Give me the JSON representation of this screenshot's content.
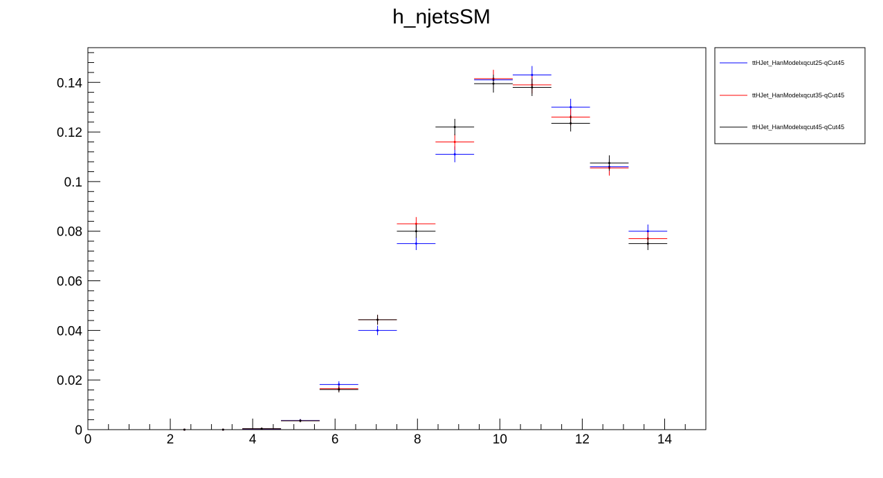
{
  "chart_data": {
    "type": "scatter",
    "title": "h_njetsSM",
    "xlabel": "",
    "ylabel": "",
    "xlim": [
      0,
      15
    ],
    "ylim": [
      0,
      0.154
    ],
    "x_ticks": [
      0,
      2,
      4,
      6,
      8,
      10,
      12,
      14
    ],
    "x_tick_labels": [
      "0",
      "2",
      "4",
      "6",
      "8",
      "10",
      "12",
      "14"
    ],
    "y_ticks": [
      0,
      0.02,
      0.04,
      0.06,
      0.08,
      0.1,
      0.12,
      0.14
    ],
    "y_tick_labels": [
      "0",
      "0.02",
      "0.04",
      "0.06",
      "0.08",
      "0.1",
      "0.12",
      "0.14"
    ],
    "bin_low": [
      1.875,
      2.8125,
      3.75,
      4.6875,
      5.625,
      6.5625,
      7.5,
      8.4375,
      9.375,
      10.3125,
      11.25,
      12.1875,
      13.125
    ],
    "bin_high": [
      2.8125,
      3.75,
      4.6875,
      5.625,
      6.5625,
      7.5,
      8.4375,
      9.375,
      10.3125,
      11.25,
      12.1875,
      13.125,
      14.0625
    ],
    "legend_position": "top-right, outside plot",
    "grid": false,
    "series": [
      {
        "name": "ttHJet_HanModelxqcut25-qCut45",
        "color": "#0000ff",
        "values": [
          0.0,
          0.0,
          0.0003,
          0.0037,
          0.0182,
          0.04,
          0.075,
          0.111,
          0.141,
          0.143,
          0.13,
          0.106,
          0.08
        ],
        "errors": [
          0.0,
          0.0,
          0.0002,
          0.0006,
          0.0013,
          0.0019,
          0.0026,
          0.0032,
          0.0036,
          0.0036,
          0.0034,
          0.0031,
          0.0027
        ]
      },
      {
        "name": "ttHJet_HanModelxqcut35-qCut45",
        "color": "#ff0000",
        "values": [
          0.0,
          0.0,
          0.0004,
          0.0036,
          0.0165,
          0.0443,
          0.083,
          0.116,
          0.1415,
          0.139,
          0.126,
          0.1055,
          0.077
        ],
        "errors": [
          0.0,
          0.0,
          0.0002,
          0.0006,
          0.0012,
          0.002,
          0.0027,
          0.0032,
          0.0036,
          0.0035,
          0.0034,
          0.0031,
          0.0026
        ]
      },
      {
        "name": "ttHJet_HanModelxqcut45-qCut45",
        "color": "#000000",
        "values": [
          0.0,
          0.0,
          0.0004,
          0.0036,
          0.0162,
          0.0443,
          0.08,
          0.122,
          0.1395,
          0.138,
          0.1235,
          0.1075,
          0.075
        ],
        "errors": [
          0.0,
          0.0,
          0.0002,
          0.0006,
          0.0012,
          0.002,
          0.0027,
          0.0033,
          0.0036,
          0.0035,
          0.0033,
          0.0031,
          0.0026
        ]
      }
    ]
  }
}
